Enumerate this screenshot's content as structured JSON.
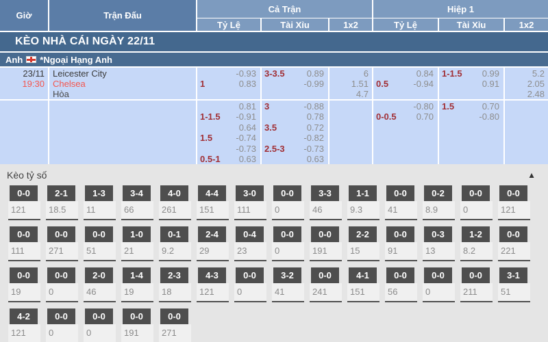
{
  "header": {
    "time": "Giờ",
    "match": "Trận Đấu",
    "full_time": "Cả Trận",
    "first_half": "Hiệp 1",
    "sub": {
      "odds": "Tỷ Lệ",
      "over_under": "Tài Xỉu",
      "one_x_two": "1x2"
    }
  },
  "banner": {
    "title": "KÈO NHÀ CÁI NGÀY 22/11"
  },
  "league": {
    "country": "Anh",
    "flag": "england-flag",
    "name": "*Ngoại Hạng Anh"
  },
  "odds_rows": [
    {
      "date": "23/11",
      "time": "19:30",
      "teams": [
        "Leicester City",
        "Chelsea",
        "Hòa"
      ],
      "ft_hdp": [
        [
          "",
          "-0.93"
        ],
        [
          "1",
          "0.83"
        ]
      ],
      "ft_ou": [
        [
          "3-3.5",
          "0.89"
        ],
        [
          "",
          "-0.99"
        ]
      ],
      "ft_1x2": [
        "6",
        "1.51",
        "4.7"
      ],
      "h1_hdp": [
        [
          "",
          "0.84"
        ],
        [
          "0.5",
          "-0.94"
        ]
      ],
      "h1_ou": [
        [
          "1-1.5",
          "0.99"
        ],
        [
          "",
          "0.91"
        ]
      ],
      "h1_1x2": [
        "5.2",
        "2.05",
        "2.48"
      ]
    },
    {
      "ft_hdp": [
        [
          "",
          "0.81"
        ],
        [
          "1-1.5",
          "-0.91"
        ]
      ],
      "ft_ou": [
        [
          "3",
          "-0.88"
        ],
        [
          "",
          "0.78"
        ]
      ],
      "ft_1x2": [],
      "h1_hdp": [
        [
          "",
          "-0.80"
        ],
        [
          "0-0.5",
          "0.70"
        ]
      ],
      "h1_ou": [
        [
          "1.5",
          "0.70"
        ],
        [
          "",
          "-0.80"
        ]
      ],
      "h1_1x2": []
    },
    {
      "ft_hdp": [
        [
          "",
          "0.64"
        ],
        [
          "1.5",
          "-0.74"
        ]
      ],
      "ft_ou": [
        [
          "3.5",
          "0.72"
        ],
        [
          "",
          "-0.82"
        ]
      ],
      "ft_1x2": [],
      "h1_hdp": [],
      "h1_ou": [],
      "h1_1x2": []
    },
    {
      "ft_hdp": [
        [
          "",
          "-0.73"
        ],
        [
          "0.5-1",
          "0.63"
        ]
      ],
      "ft_ou": [
        [
          "2.5-3",
          "-0.73"
        ],
        [
          "",
          "0.63"
        ]
      ],
      "ft_1x2": [],
      "h1_hdp": [],
      "h1_ou": [],
      "h1_1x2": []
    }
  ],
  "score_odds": {
    "title": "Kèo tỷ số",
    "collapse_icon": "▲",
    "rows": [
      [
        {
          "score": "0-0",
          "odds": "121"
        },
        {
          "score": "2-1",
          "odds": "18.5"
        },
        {
          "score": "1-3",
          "odds": "11"
        },
        {
          "score": "3-4",
          "odds": "66"
        },
        {
          "score": "4-0",
          "odds": "261"
        },
        {
          "score": "4-4",
          "odds": "151"
        },
        {
          "score": "3-0",
          "odds": "111"
        },
        {
          "score": "0-0",
          "odds": "0"
        },
        {
          "score": "3-3",
          "odds": "46"
        },
        {
          "score": "1-1",
          "odds": "9.3"
        },
        {
          "score": "0-0",
          "odds": "41"
        },
        {
          "score": "0-2",
          "odds": "8.9"
        },
        {
          "score": "0-0",
          "odds": "0"
        },
        {
          "score": "0-0",
          "odds": "121"
        }
      ],
      [
        {
          "score": "0-0",
          "odds": "111"
        },
        {
          "score": "0-0",
          "odds": "271"
        },
        {
          "score": "0-0",
          "odds": "51"
        },
        {
          "score": "1-0",
          "odds": "21"
        },
        {
          "score": "0-1",
          "odds": "9.2"
        },
        {
          "score": "2-4",
          "odds": "29"
        },
        {
          "score": "0-4",
          "odds": "23"
        },
        {
          "score": "0-0",
          "odds": "0"
        },
        {
          "score": "0-0",
          "odds": "191"
        },
        {
          "score": "2-2",
          "odds": "15"
        },
        {
          "score": "0-0",
          "odds": "91"
        },
        {
          "score": "0-3",
          "odds": "13"
        },
        {
          "score": "1-2",
          "odds": "8.2"
        },
        {
          "score": "0-0",
          "odds": "221"
        }
      ],
      [
        {
          "score": "0-0",
          "odds": "19"
        },
        {
          "score": "0-0",
          "odds": "0"
        },
        {
          "score": "2-0",
          "odds": "46"
        },
        {
          "score": "1-4",
          "odds": "19"
        },
        {
          "score": "2-3",
          "odds": "18"
        },
        {
          "score": "4-3",
          "odds": "121"
        },
        {
          "score": "0-0",
          "odds": "0"
        },
        {
          "score": "3-2",
          "odds": "41"
        },
        {
          "score": "0-0",
          "odds": "241"
        },
        {
          "score": "4-1",
          "odds": "151"
        },
        {
          "score": "0-0",
          "odds": "56"
        },
        {
          "score": "0-0",
          "odds": "0"
        },
        {
          "score": "0-0",
          "odds": "211"
        },
        {
          "score": "3-1",
          "odds": "51"
        }
      ],
      [
        {
          "score": "4-2",
          "odds": "121"
        },
        {
          "score": "0-0",
          "odds": "0"
        },
        {
          "score": "0-0",
          "odds": "0"
        },
        {
          "score": "0-0",
          "odds": "191"
        },
        {
          "score": "0-0",
          "odds": "271"
        }
      ]
    ]
  },
  "colors": {
    "header_blue": "#5b7da7",
    "header_blue_light": "#7d9bbf",
    "banner_blue": "#44688e",
    "league_blue": "#486b90",
    "row_blue": "#c6d8f8",
    "accent_red": "#f4554d",
    "handicap_red": "#a12f35",
    "odds_gray": "#8d8d8d",
    "tile_dark": "#4e4e4e",
    "section_gray": "#e5e5e5"
  }
}
